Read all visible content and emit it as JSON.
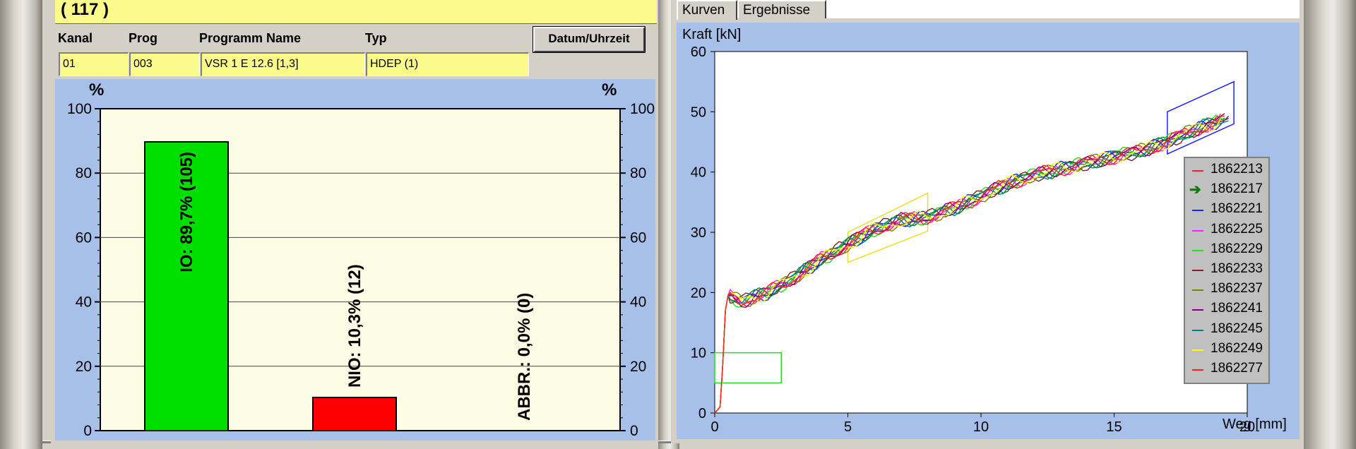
{
  "counter": "( 117 )",
  "table": {
    "headers": {
      "kanal": "Kanal",
      "prog": "Prog",
      "name": "Programm Name",
      "typ": "Typ"
    },
    "row": {
      "kanal": "01",
      "prog": "003",
      "name": "VSR 1 E 12.6  [1,3]",
      "typ": "HDEP (1)"
    },
    "datetime_button": "Datum/Uhrzeit"
  },
  "bar_chart": {
    "left_unit": "%",
    "right_unit": "%",
    "ticks": [
      "0",
      "20",
      "40",
      "60",
      "80",
      "100"
    ],
    "bars": [
      {
        "label": "IO: 89,7% (105)",
        "value": 89.7,
        "color": "#00e000"
      },
      {
        "label": "NIO: 10,3% (12)",
        "value": 10.3,
        "color": "#ff0000"
      },
      {
        "label": "ABBR.: 0,0% (0)",
        "value": 0.0,
        "color": "#ff0000"
      }
    ]
  },
  "tabs": {
    "kurven": "Kurven",
    "ergebnisse": "Ergebnisse"
  },
  "chart_data": {
    "type": "line",
    "ylabel": "Kraft [kN]",
    "xlabel": "Weg [mm]",
    "xlim": [
      0,
      20
    ],
    "ylim": [
      0,
      60
    ],
    "xticks": [
      "0",
      "5",
      "10",
      "15",
      "20"
    ],
    "yticks": [
      "0",
      "10",
      "20",
      "30",
      "40",
      "50",
      "60"
    ],
    "legend_position": "right",
    "series": [
      {
        "name": "1862213",
        "color": "#ff2020"
      },
      {
        "name": "1862217",
        "color": "#008000",
        "marker": "arrow"
      },
      {
        "name": "1862221",
        "color": "#2020ff"
      },
      {
        "name": "1862225",
        "color": "#ff20ff"
      },
      {
        "name": "1862229",
        "color": "#20e020"
      },
      {
        "name": "1862233",
        "color": "#802020"
      },
      {
        "name": "1862237",
        "color": "#808000"
      },
      {
        "name": "1862241",
        "color": "#800080"
      },
      {
        "name": "1862245",
        "color": "#008080"
      },
      {
        "name": "1862249",
        "color": "#ffff00"
      },
      {
        "name": "1862277",
        "color": "#ff2020"
      }
    ],
    "curve_points": [
      [
        0,
        0
      ],
      [
        0.2,
        1
      ],
      [
        0.3,
        8
      ],
      [
        0.4,
        17
      ],
      [
        0.5,
        19.5
      ],
      [
        1,
        18.5
      ],
      [
        2,
        20
      ],
      [
        3,
        22.5
      ],
      [
        4,
        25.5
      ],
      [
        5,
        28
      ],
      [
        6,
        30.5
      ],
      [
        7,
        32
      ],
      [
        8,
        32.5
      ],
      [
        9,
        34
      ],
      [
        10,
        36
      ],
      [
        11,
        38
      ],
      [
        12,
        39.5
      ],
      [
        13,
        40.5
      ],
      [
        14,
        41.5
      ],
      [
        15,
        42.5
      ],
      [
        16,
        43.5
      ],
      [
        17,
        45
      ],
      [
        18,
        47
      ],
      [
        19,
        48.5
      ]
    ],
    "windows": [
      {
        "color": "#20e020",
        "corners": [
          [
            0,
            10
          ],
          [
            2.5,
            10
          ],
          [
            2.5,
            5
          ],
          [
            0,
            5
          ]
        ]
      },
      {
        "color": "#e8e020",
        "corners": [
          [
            5,
            30
          ],
          [
            8,
            36.5
          ],
          [
            8,
            30.2
          ],
          [
            5,
            25
          ]
        ]
      },
      {
        "color": "#2020ff",
        "corners": [
          [
            17,
            50
          ],
          [
            19.5,
            55
          ],
          [
            19.5,
            48
          ],
          [
            17,
            43
          ]
        ]
      }
    ]
  }
}
